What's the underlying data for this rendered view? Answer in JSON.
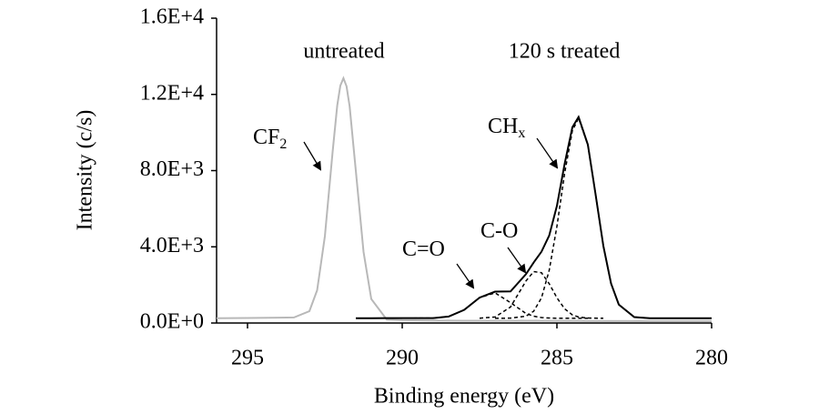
{
  "chart_data": {
    "type": "line",
    "x_label": "Binding energy (eV)",
    "y_label": "Intensity (c/s)",
    "xlim": [
      296,
      280
    ],
    "xticks": [
      295,
      290,
      285,
      280
    ],
    "ylim": [
      0,
      16000
    ],
    "yticks": [
      {
        "value": 0,
        "label": "0.0E+0"
      },
      {
        "value": 4000,
        "label": "4.0E+3"
      },
      {
        "value": 8000,
        "label": "8.0E+3"
      },
      {
        "value": 12000,
        "label": "1.2E+4"
      },
      {
        "value": 16000,
        "label": "1.6E+4"
      }
    ],
    "series": [
      {
        "name": "untreated",
        "color": "#b8b8b8",
        "dashed": false,
        "x": [
          296,
          295,
          294,
          293.5,
          293,
          292.75,
          292.5,
          292.25,
          292.1,
          292,
          291.9,
          291.8,
          291.7,
          291.5,
          291.25,
          291,
          290.5,
          290,
          289,
          288,
          286,
          284,
          282,
          280
        ],
        "values": [
          250,
          260,
          280,
          290,
          620,
          1720,
          4550,
          8980,
          11420,
          12460,
          12850,
          12430,
          11380,
          8000,
          3730,
          1260,
          180,
          150,
          130,
          120,
          120,
          110,
          100,
          100
        ]
      },
      {
        "name": "120 s treated",
        "color": "#000000",
        "dashed": false,
        "x": [
          291.5,
          291,
          290.5,
          290,
          289.5,
          289,
          288.5,
          288,
          287.5,
          287,
          286.5,
          286,
          285.75,
          285.5,
          285.25,
          285,
          284.75,
          284.5,
          284.3,
          284,
          283.75,
          283.5,
          283.25,
          283,
          282.5,
          282,
          281.5,
          281,
          280
        ],
        "values": [
          250,
          250,
          255,
          255,
          258,
          259,
          339,
          688,
          1334,
          1646,
          1659,
          2565,
          3180,
          3741,
          4587,
          6147,
          8360,
          10277,
          10815,
          9361,
          6747,
          4052,
          2073,
          968,
          311,
          250,
          250,
          250,
          250
        ]
      },
      {
        "color": "#000000",
        "dashed": true,
        "x": [
          291.5,
          290,
          289,
          288.5,
          288,
          287.5,
          287,
          286.5,
          286,
          285.75,
          285.5,
          285.25,
          285,
          284.5,
          284
        ],
        "values": [
          250,
          250,
          259,
          339,
          688,
          1331,
          1581,
          1069,
          501,
          357,
          288,
          262,
          250,
          250,
          250
        ]
      },
      {
        "color": "#000000",
        "dashed": true,
        "x": [
          287.5,
          287,
          286.5,
          286,
          285.75,
          285.5,
          285.25,
          285,
          284.75,
          284.5,
          284.3,
          284,
          283.5
        ],
        "values": [
          253,
          315,
          840,
          2207,
          2700,
          2640,
          2065,
          1324,
          744,
          427,
          315,
          261,
          250
        ]
      },
      {
        "color": "#000000",
        "dashed": true,
        "x": [
          287,
          286.5,
          286,
          285.75,
          285.5,
          285.25,
          285,
          284.75,
          284.5,
          284.3,
          284,
          283.75,
          283.5,
          283.25,
          283,
          282.5,
          282,
          281.5
        ],
        "values": [
          250,
          255,
          357,
          623,
          1313,
          2760,
          5073,
          7866,
          10100,
          10750,
          9350,
          6747,
          4052,
          2073,
          968,
          311,
          250,
          250
        ]
      }
    ],
    "annotations": [
      {
        "text": "CF",
        "sub": "2"
      },
      {
        "text": "C=O"
      },
      {
        "text": "C-O"
      },
      {
        "text": "CH",
        "sub": "x"
      }
    ]
  }
}
